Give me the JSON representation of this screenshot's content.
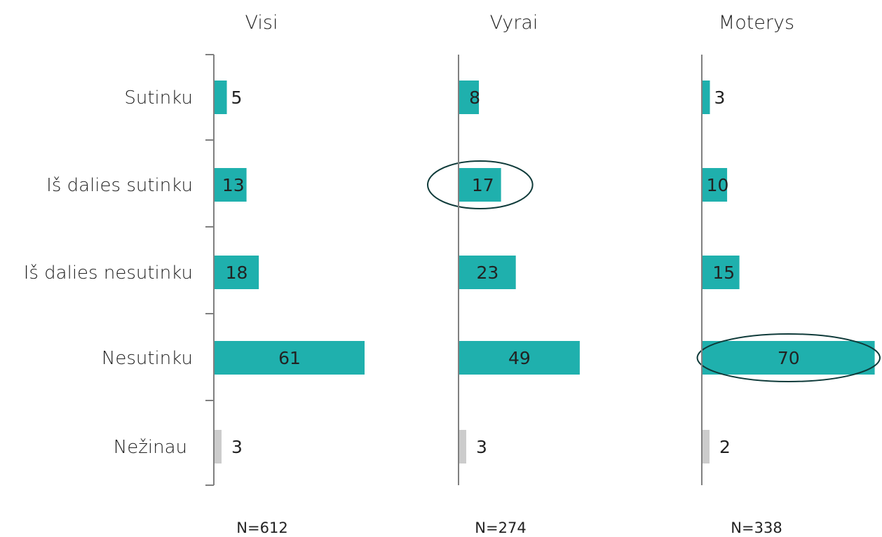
{
  "chart_data": {
    "type": "bar",
    "orientation": "horizontal",
    "categories": [
      "Sutinku",
      "Iš dalies sutinku",
      "Iš dalies nesutinku",
      "Nesutinku",
      "Nežinau"
    ],
    "panels": [
      {
        "title": "Visi",
        "n_label": "N=612",
        "values": [
          5,
          13,
          18,
          61,
          3
        ],
        "highlight": []
      },
      {
        "title": "Vyrai",
        "n_label": "N=274",
        "values": [
          8,
          17,
          23,
          49,
          3
        ],
        "highlight": [
          1
        ]
      },
      {
        "title": "Moterys",
        "n_label": "N=338",
        "values": [
          3,
          10,
          15,
          70,
          2
        ],
        "highlight": [
          3
        ]
      }
    ],
    "xlim": [
      0,
      70
    ],
    "colors": {
      "main": "#1fb0ad",
      "dont_know": "#cccccc",
      "axis": "#808080",
      "highlight_ring": "#0f3b3a"
    }
  }
}
